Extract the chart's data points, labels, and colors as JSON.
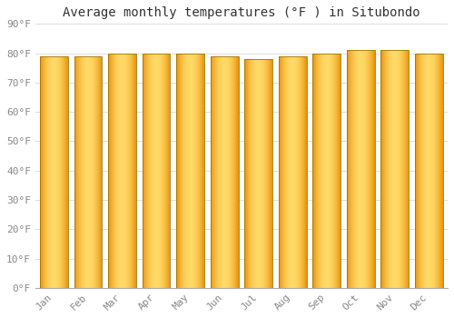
{
  "title": "Average monthly temperatures (°F ) in Situbondo",
  "months": [
    "Jan",
    "Feb",
    "Mar",
    "Apr",
    "May",
    "Jun",
    "Jul",
    "Aug",
    "Sep",
    "Oct",
    "Nov",
    "Dec"
  ],
  "values": [
    79,
    79,
    80,
    80,
    80,
    79,
    78,
    79,
    80,
    81,
    81,
    80
  ],
  "ylim": [
    0,
    90
  ],
  "yticks": [
    0,
    10,
    20,
    30,
    40,
    50,
    60,
    70,
    80,
    90
  ],
  "bar_color_left": "#E8920A",
  "bar_color_center": "#FFD966",
  "bar_edge_color": "#B8860B",
  "background_color": "#FFFFFF",
  "grid_color": "#DDDDDD",
  "title_fontsize": 10,
  "tick_fontsize": 8,
  "bar_width": 0.82
}
